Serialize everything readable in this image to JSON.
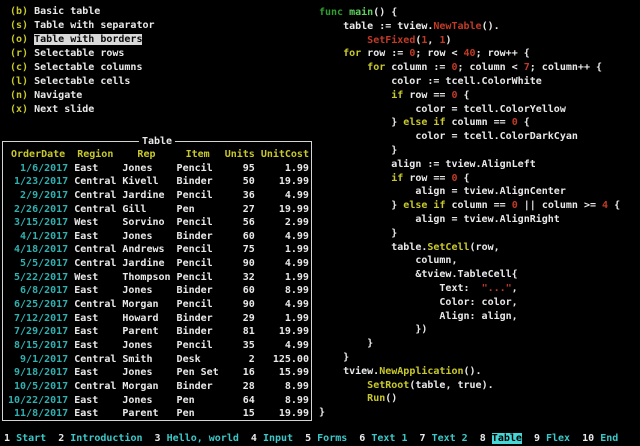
{
  "menu": {
    "items": [
      {
        "key": "(b)",
        "label": "Basic table",
        "active": false
      },
      {
        "key": "(s)",
        "label": "Table with separator",
        "active": false
      },
      {
        "key": "(o)",
        "label": "Table with borders",
        "active": true
      },
      {
        "key": "(r)",
        "label": "Selectable rows",
        "active": false
      },
      {
        "key": "(c)",
        "label": "Selectable columns",
        "active": false
      },
      {
        "key": "(l)",
        "label": "Selectable cells",
        "active": false
      },
      {
        "key": "(n)",
        "label": "Navigate",
        "active": false
      },
      {
        "key": "(x)",
        "label": "Next slide",
        "active": false
      }
    ]
  },
  "table": {
    "title": "Table",
    "headers": [
      "OrderDate",
      "Region",
      "Rep",
      "Item",
      "Units",
      "UnitCost"
    ],
    "rows": [
      [
        "1/6/2017",
        "East",
        "Jones",
        "Pencil",
        "95",
        "1.99"
      ],
      [
        "1/23/2017",
        "Central",
        "Kivell",
        "Binder",
        "50",
        "19.99"
      ],
      [
        "2/9/2017",
        "Central",
        "Jardine",
        "Pencil",
        "36",
        "4.99"
      ],
      [
        "2/26/2017",
        "Central",
        "Gill",
        "Pen",
        "27",
        "19.99"
      ],
      [
        "3/15/2017",
        "West",
        "Sorvino",
        "Pencil",
        "56",
        "2.99"
      ],
      [
        "4/1/2017",
        "East",
        "Jones",
        "Binder",
        "60",
        "4.99"
      ],
      [
        "4/18/2017",
        "Central",
        "Andrews",
        "Pencil",
        "75",
        "1.99"
      ],
      [
        "5/5/2017",
        "Central",
        "Jardine",
        "Pencil",
        "90",
        "4.99"
      ],
      [
        "5/22/2017",
        "West",
        "Thompson",
        "Pencil",
        "32",
        "1.99"
      ],
      [
        "6/8/2017",
        "East",
        "Jones",
        "Binder",
        "60",
        "8.99"
      ],
      [
        "6/25/2017",
        "Central",
        "Morgan",
        "Pencil",
        "90",
        "4.99"
      ],
      [
        "7/12/2017",
        "East",
        "Howard",
        "Binder",
        "29",
        "1.99"
      ],
      [
        "7/29/2017",
        "East",
        "Parent",
        "Binder",
        "81",
        "19.99"
      ],
      [
        "8/15/2017",
        "East",
        "Jones",
        "Pencil",
        "35",
        "4.99"
      ],
      [
        "9/1/2017",
        "Central",
        "Smith",
        "Desk",
        "2",
        "125.00"
      ],
      [
        "9/18/2017",
        "East",
        "Jones",
        "Pen Set",
        "16",
        "15.99"
      ],
      [
        "10/5/2017",
        "Central",
        "Morgan",
        "Binder",
        "28",
        "8.99"
      ],
      [
        "10/22/2017",
        "East",
        "Jones",
        "Pen",
        "64",
        "8.99"
      ],
      [
        "11/8/2017",
        "East",
        "Parent",
        "Pen",
        "15",
        "19.99"
      ]
    ]
  },
  "code": {
    "lines": [
      [
        [
          "g",
          "func "
        ],
        [
          "G",
          "main"
        ],
        [
          "w",
          "() {"
        ]
      ],
      [
        [
          "w",
          "    table := tview."
        ],
        [
          "r",
          "NewTable"
        ],
        [
          "w",
          "()."
        ]
      ],
      [
        [
          "w",
          "        "
        ],
        [
          "r",
          "SetFixed"
        ],
        [
          "w",
          "("
        ],
        [
          "r",
          "1"
        ],
        [
          "w",
          ", "
        ],
        [
          "r",
          "1"
        ],
        [
          "w",
          ")"
        ]
      ],
      [
        [
          "w",
          "    "
        ],
        [
          "y",
          "for"
        ],
        [
          "w",
          " row := "
        ],
        [
          "r",
          "0"
        ],
        [
          "w",
          "; row < "
        ],
        [
          "r",
          "40"
        ],
        [
          "w",
          "; row++ {"
        ]
      ],
      [
        [
          "w",
          "        "
        ],
        [
          "y",
          "for"
        ],
        [
          "w",
          " column := "
        ],
        [
          "r",
          "0"
        ],
        [
          "w",
          "; column < "
        ],
        [
          "r",
          "7"
        ],
        [
          "w",
          "; column++ {"
        ]
      ],
      [
        [
          "w",
          "            color := tcell.ColorWhite"
        ]
      ],
      [
        [
          "w",
          "            "
        ],
        [
          "y",
          "if"
        ],
        [
          "w",
          " row == "
        ],
        [
          "r",
          "0"
        ],
        [
          "w",
          " {"
        ]
      ],
      [
        [
          "w",
          "                color = tcell.ColorYellow"
        ]
      ],
      [
        [
          "w",
          "            } "
        ],
        [
          "y",
          "else"
        ],
        [
          "w",
          " "
        ],
        [
          "y",
          "if"
        ],
        [
          "w",
          " column == "
        ],
        [
          "r",
          "0"
        ],
        [
          "w",
          " {"
        ]
      ],
      [
        [
          "w",
          "                color = tcell.ColorDarkCyan"
        ]
      ],
      [
        [
          "w",
          "            }"
        ]
      ],
      [
        [
          "w",
          "            align := tview.AlignLeft"
        ]
      ],
      [
        [
          "w",
          "            "
        ],
        [
          "y",
          "if"
        ],
        [
          "w",
          " row == "
        ],
        [
          "r",
          "0"
        ],
        [
          "w",
          " {"
        ]
      ],
      [
        [
          "w",
          "                align = tview.AlignCenter"
        ]
      ],
      [
        [
          "w",
          "            } "
        ],
        [
          "y",
          "else"
        ],
        [
          "w",
          " "
        ],
        [
          "y",
          "if"
        ],
        [
          "w",
          " column == "
        ],
        [
          "r",
          "0"
        ],
        [
          "w",
          " || column >= "
        ],
        [
          "r",
          "4"
        ],
        [
          "w",
          " {"
        ]
      ],
      [
        [
          "w",
          "                align = tview.AlignRight"
        ]
      ],
      [
        [
          "w",
          "            }"
        ]
      ],
      [
        [
          "w",
          "            table."
        ],
        [
          "y",
          "SetCell"
        ],
        [
          "w",
          "(row,"
        ]
      ],
      [
        [
          "w",
          "                column,"
        ]
      ],
      [
        [
          "w",
          "                &tview.TableCell{"
        ]
      ],
      [
        [
          "w",
          "                    Text:  "
        ],
        [
          "r",
          "\"...\""
        ],
        [
          "w",
          ","
        ]
      ],
      [
        [
          "w",
          "                    Color: color,"
        ]
      ],
      [
        [
          "w",
          "                    Align: align,"
        ]
      ],
      [
        [
          "w",
          "                })"
        ]
      ],
      [
        [
          "w",
          "        }"
        ]
      ],
      [
        [
          "w",
          "    }"
        ]
      ],
      [
        [
          "w",
          "    tview."
        ],
        [
          "y",
          "NewApplication"
        ],
        [
          "w",
          "()."
        ]
      ],
      [
        [
          "w",
          "        "
        ],
        [
          "y",
          "SetRoot"
        ],
        [
          "w",
          "(table, true)."
        ]
      ],
      [
        [
          "w",
          "        "
        ],
        [
          "y",
          "Run"
        ],
        [
          "w",
          "()"
        ]
      ],
      [
        [
          "w",
          "}"
        ]
      ]
    ]
  },
  "statusbar": {
    "slides": [
      {
        "number": "1",
        "label": "Start",
        "active": false
      },
      {
        "number": "2",
        "label": "Introduction",
        "active": false
      },
      {
        "number": "3",
        "label": "Hello, world",
        "active": false
      },
      {
        "number": "4",
        "label": "Input",
        "active": false
      },
      {
        "number": "5",
        "label": "Forms",
        "active": false
      },
      {
        "number": "6",
        "label": "Text 1",
        "active": false
      },
      {
        "number": "7",
        "label": "Text 2",
        "active": false
      },
      {
        "number": "8",
        "label": "Table",
        "active": true
      },
      {
        "number": "9",
        "label": "Flex",
        "active": false
      },
      {
        "number": "10",
        "label": "End",
        "active": false
      }
    ]
  },
  "colors": {
    "background": "#000000",
    "w": "#e9e9e9",
    "y": "#c8c82c",
    "r": "#c23a26",
    "g": "#2f9e2f",
    "G": "#5ccf5c",
    "date_cyan": "#30b0b0",
    "bar_cyan": "#3cc8c8",
    "menu_highlight_bg": "#d9d9d9",
    "bar_highlight_bg": "#45d7d7",
    "panel_border": "#d4d4d4"
  }
}
